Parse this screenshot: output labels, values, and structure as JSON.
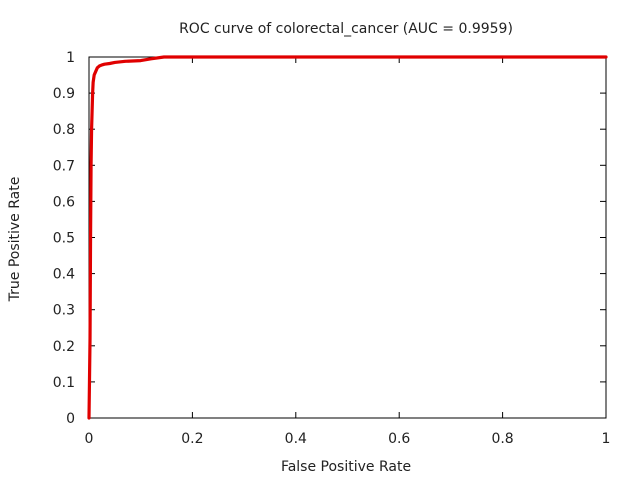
{
  "chart_data": {
    "type": "line",
    "title": "ROC curve of colorectal_cancer (AUC = 0.9959)",
    "xlabel": "False Positive Rate",
    "ylabel": "True Positive Rate",
    "xlim": [
      0,
      1
    ],
    "ylim": [
      0,
      1
    ],
    "x_ticks": [
      {
        "value": 0,
        "label": "0"
      },
      {
        "value": 0.2,
        "label": "0.2"
      },
      {
        "value": 0.4,
        "label": "0.4"
      },
      {
        "value": 0.6,
        "label": "0.6"
      },
      {
        "value": 0.8,
        "label": "0.8"
      },
      {
        "value": 1,
        "label": "1"
      }
    ],
    "y_ticks": [
      {
        "value": 0,
        "label": "0"
      },
      {
        "value": 0.1,
        "label": "0.1"
      },
      {
        "value": 0.2,
        "label": "0.2"
      },
      {
        "value": 0.3,
        "label": "0.3"
      },
      {
        "value": 0.4,
        "label": "0.4"
      },
      {
        "value": 0.5,
        "label": "0.5"
      },
      {
        "value": 0.6,
        "label": "0.6"
      },
      {
        "value": 0.7,
        "label": "0.7"
      },
      {
        "value": 0.8,
        "label": "0.8"
      },
      {
        "value": 0.9,
        "label": "0.9"
      },
      {
        "value": 1,
        "label": "1"
      }
    ],
    "grid": false,
    "series": [
      {
        "color": "#e00000",
        "x": [
          0,
          0.002,
          0.003,
          0.004,
          0.005,
          0.006,
          0.007,
          0.008,
          0.01,
          0.013,
          0.016,
          0.02,
          0.025,
          0.03,
          0.04,
          0.05,
          0.07,
          0.1,
          0.12,
          0.145,
          0.2,
          0.4,
          0.6,
          0.8,
          1.0
        ],
        "y": [
          0,
          0.22,
          0.5,
          0.7,
          0.8,
          0.85,
          0.9,
          0.93,
          0.95,
          0.96,
          0.97,
          0.975,
          0.978,
          0.98,
          0.982,
          0.985,
          0.988,
          0.99,
          0.995,
          1.0,
          1.0,
          1.0,
          1.0,
          1.0,
          1.0
        ]
      }
    ]
  }
}
